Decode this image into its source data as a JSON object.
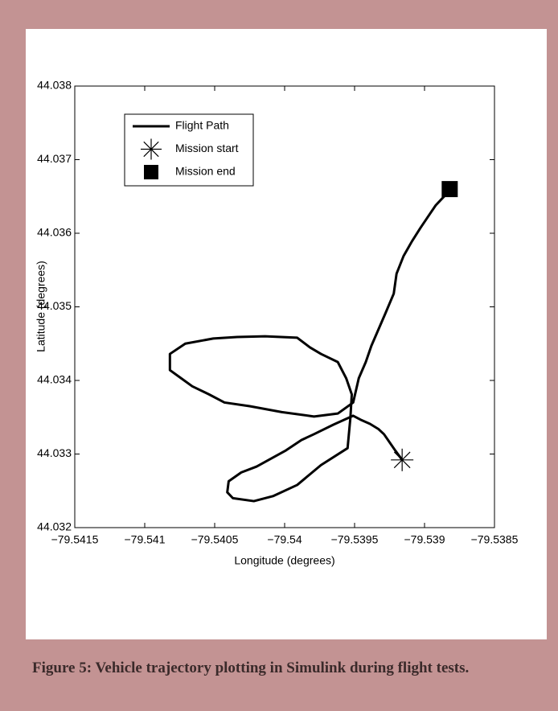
{
  "chart_data": {
    "type": "line",
    "xlabel": "Longitude (degrees)",
    "ylabel": "Latitude (degrees)",
    "xlim": [
      -79.5415,
      -79.5385
    ],
    "xticks": [
      {
        "value": -79.5415,
        "label": "−79.5415"
      },
      {
        "value": -79.541,
        "label": "−79.541"
      },
      {
        "value": -79.5405,
        "label": "−79.5405"
      },
      {
        "value": -79.54,
        "label": "−79.54"
      },
      {
        "value": -79.5395,
        "label": "−79.5395"
      },
      {
        "value": -79.539,
        "label": "−79.539"
      },
      {
        "value": -79.5385,
        "label": "−79.5385"
      }
    ],
    "ylim": [
      44.032,
      44.038
    ],
    "yticks": [
      44.032,
      44.033,
      44.034,
      44.035,
      44.036,
      44.037,
      44.038
    ],
    "legend": "upper left",
    "series": [
      {
        "name": "Flight Path",
        "color": "#000000",
        "marker": "line",
        "x": [
          -79.53916,
          -79.53921,
          -79.53925,
          -79.53929,
          -79.53933,
          -79.53939,
          -79.53945,
          -79.53951,
          -79.53965,
          -79.53979,
          -79.53988,
          -79.53999,
          -79.5402,
          -79.54031,
          -79.5404,
          -79.54041,
          -79.54037,
          -79.54022,
          -79.54008,
          -79.53991,
          -79.53974,
          -79.53955,
          -79.53953,
          -79.53952,
          -79.53956,
          -79.53962,
          -79.53974,
          -79.53982,
          -79.53991,
          -79.54014,
          -79.54034,
          -79.54051,
          -79.54071,
          -79.54082,
          -79.54082,
          -79.54074,
          -79.54066,
          -79.54054,
          -79.54043,
          -79.54025,
          -79.54002,
          -79.53979,
          -79.53962,
          -79.53951,
          -79.53947,
          -79.53942,
          -79.53938,
          -79.53933,
          -79.53928,
          -79.53922,
          -79.5392,
          -79.53915,
          -79.53909,
          -79.53903,
          -79.53897,
          -79.53892,
          -79.53887,
          -79.53882
        ],
        "values": [
          44.03292,
          44.03305,
          44.03316,
          44.03327,
          44.03334,
          44.03341,
          44.03346,
          44.03352,
          44.0334,
          44.03327,
          44.03319,
          44.03305,
          44.03283,
          44.03275,
          44.03263,
          44.03248,
          44.0324,
          44.03236,
          44.03243,
          44.03258,
          44.03285,
          44.03308,
          44.03349,
          44.03381,
          44.03403,
          44.03425,
          44.03436,
          44.03445,
          44.03458,
          44.0346,
          44.03459,
          44.03457,
          44.0345,
          44.03436,
          44.03414,
          44.03403,
          44.03392,
          44.03381,
          44.0337,
          44.03365,
          44.03357,
          44.03351,
          44.03355,
          44.0337,
          44.03403,
          44.03425,
          44.03447,
          44.03469,
          44.03491,
          44.03518,
          44.03545,
          44.03569,
          44.03589,
          44.03607,
          44.03624,
          44.03638,
          44.03648,
          44.03658
        ]
      },
      {
        "name": "Mission start",
        "color": "#000000",
        "marker": "asterisk",
        "x": [
          -79.53916
        ],
        "values": [
          44.03292
        ]
      },
      {
        "name": "Mission end",
        "color": "#000000",
        "marker": "square",
        "x": [
          -79.53882
        ],
        "values": [
          44.0366
        ]
      }
    ]
  },
  "caption": "Figure 5: Vehicle trajectory plotting in Simulink during flight tests."
}
